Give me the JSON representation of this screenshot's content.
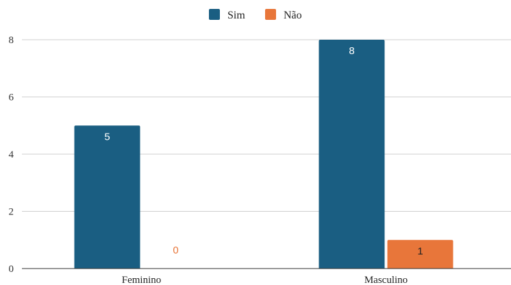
{
  "chart_data": {
    "type": "bar",
    "categories": [
      "Feminino",
      "Masculino"
    ],
    "series": [
      {
        "name": "Sim",
        "values": [
          5,
          8
        ],
        "color": "#1a5e82"
      },
      {
        "name": "Não",
        "values": [
          0,
          1
        ],
        "color": "#e8763a"
      }
    ],
    "ylim": [
      0,
      8
    ],
    "yticks": [
      "0",
      "2",
      "4",
      "6",
      "8"
    ],
    "data_labels": true,
    "grid": true,
    "legend_position": "top-center"
  }
}
